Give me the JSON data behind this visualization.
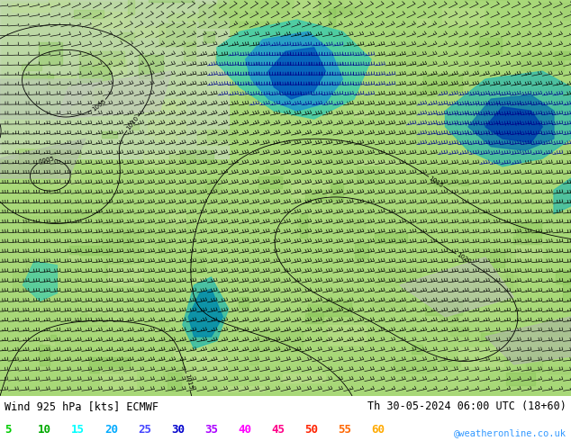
{
  "title_left": "Wind 925 hPa [kts] ECMWF",
  "title_right": "Th 30-05-2024 06:00 UTC (18+60)",
  "subtitle_right": "@weatheronline.co.uk",
  "legend_values": [
    "5",
    "10",
    "15",
    "20",
    "25",
    "30",
    "35",
    "40",
    "45",
    "50",
    "55",
    "60"
  ],
  "legend_colors": [
    "#00cc00",
    "#00aa00",
    "#00ffff",
    "#00aaff",
    "#4444ff",
    "#0000cc",
    "#aa00ff",
    "#ff00ff",
    "#ff0088",
    "#ff2200",
    "#ff6600",
    "#ffaa00"
  ],
  "bg_color": "#ffffff",
  "map_bg_green": "#90d060",
  "map_bg_gray": "#c8c8c8",
  "wind_cyan": "#00ccaa",
  "wind_blue": "#0066cc",
  "wind_darkblue": "#003388",
  "barb_color": "#000000",
  "isobar_color": "#000000",
  "title_fontsize": 8.5,
  "legend_fontsize": 9
}
